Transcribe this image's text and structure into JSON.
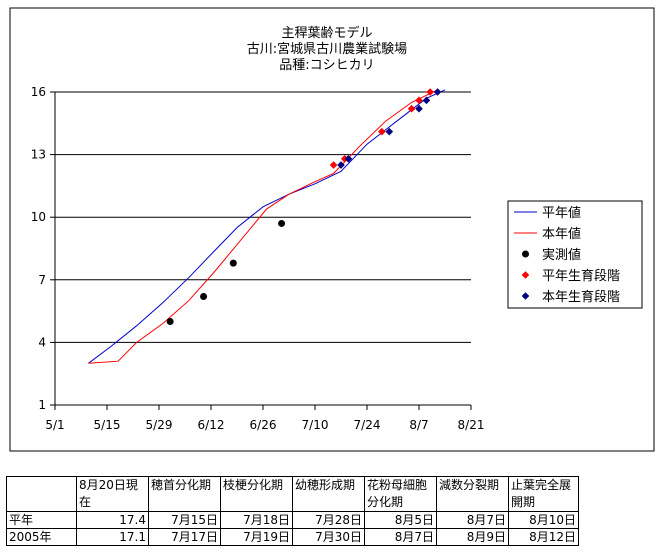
{
  "chart_data": {
    "type": "line",
    "title_lines": [
      "主稈葉齢モデル",
      "古川:宮城県古川農業試験場",
      "品種:コシヒカリ"
    ],
    "x_ticks": [
      "5/1",
      "5/15",
      "5/29",
      "6/12",
      "6/26",
      "7/10",
      "7/24",
      "8/7",
      "8/21"
    ],
    "y_ticks": [
      1,
      4,
      7,
      10,
      13,
      16
    ],
    "xlim_days_from_may1": [
      0,
      112
    ],
    "ylim": [
      1,
      16
    ],
    "grid": "horizontal",
    "legend_position": "right",
    "series": [
      {
        "name": "平年値",
        "kind": "line",
        "color": "#0000cc",
        "points": [
          [
            "5/10",
            3.0
          ],
          [
            "5/16",
            3.8
          ],
          [
            "5/23",
            4.8
          ],
          [
            "5/30",
            5.9
          ],
          [
            "6/6",
            7.1
          ],
          [
            "6/13",
            8.4
          ],
          [
            "6/19",
            9.5
          ],
          [
            "6/26",
            10.5
          ],
          [
            "7/3",
            11.1
          ],
          [
            "7/10",
            11.6
          ],
          [
            "7/17",
            12.2
          ],
          [
            "7/24",
            13.5
          ],
          [
            "8/1",
            14.6
          ],
          [
            "8/9",
            15.7
          ],
          [
            "8/14",
            16.1
          ]
        ]
      },
      {
        "name": "本年値",
        "kind": "line",
        "color": "#ff0000",
        "points": [
          [
            "5/10",
            3.0
          ],
          [
            "5/18",
            3.1
          ],
          [
            "5/23",
            4.0
          ],
          [
            "5/30",
            4.9
          ],
          [
            "6/6",
            6.0
          ],
          [
            "6/13",
            7.4
          ],
          [
            "6/20",
            8.9
          ],
          [
            "6/27",
            10.4
          ],
          [
            "7/3",
            11.1
          ],
          [
            "7/10",
            11.7
          ],
          [
            "7/15",
            12.1
          ],
          [
            "7/22",
            13.4
          ],
          [
            "7/29",
            14.6
          ],
          [
            "8/5",
            15.5
          ],
          [
            "8/12",
            16.1
          ]
        ]
      },
      {
        "name": "実測値",
        "kind": "scatter",
        "marker": "circle",
        "color": "#000000",
        "points": [
          [
            "6/1",
            5.0
          ],
          [
            "6/10",
            6.2
          ],
          [
            "6/18",
            7.8
          ],
          [
            "7/1",
            9.7
          ]
        ]
      },
      {
        "name": "平年生育段階",
        "kind": "scatter",
        "marker": "diamond",
        "color": "#ff0000",
        "points": [
          [
            "7/15",
            12.5
          ],
          [
            "7/18",
            12.8
          ],
          [
            "7/28",
            14.1
          ],
          [
            "8/5",
            15.2
          ],
          [
            "8/7",
            15.6
          ],
          [
            "8/10",
            16.0
          ]
        ]
      },
      {
        "name": "本年生育段階",
        "kind": "scatter",
        "marker": "diamond",
        "color": "#000080",
        "points": [
          [
            "7/17",
            12.5
          ],
          [
            "7/19",
            12.8
          ],
          [
            "7/30",
            14.1
          ],
          [
            "8/7",
            15.2
          ],
          [
            "8/9",
            15.6
          ],
          [
            "8/12",
            16.0
          ]
        ]
      }
    ]
  },
  "stage_table": {
    "headers": [
      "",
      "8月20日現在",
      "穂首分化期",
      "枝梗分化期",
      "幼穂形成期",
      "花粉母細胞分化期",
      "減数分裂期",
      "止葉完全展開期"
    ],
    "rows": [
      [
        "平年",
        "17.4",
        "7月15日",
        "7月18日",
        "7月28日",
        "8月5日",
        "8月7日",
        "8月10日"
      ],
      [
        "2005年",
        "17.1",
        "7月17日",
        "7月19日",
        "7月30日",
        "8月7日",
        "8月9日",
        "8月12日"
      ]
    ]
  }
}
